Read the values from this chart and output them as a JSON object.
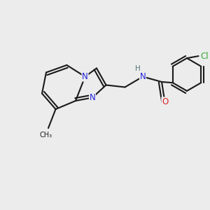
{
  "bg": "#ececec",
  "bond_color": "#1a1a1a",
  "bond_lw": 1.5,
  "atom_colors": {
    "N": "#2222dd",
    "O": "#dd2222",
    "Cl": "#33aa33",
    "H": "#557777"
  },
  "font_size": 8.5
}
